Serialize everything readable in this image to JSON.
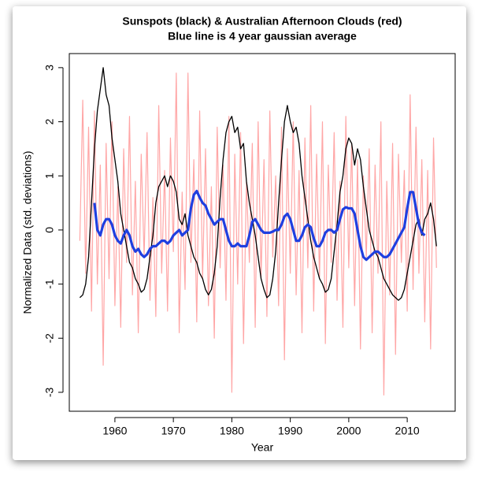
{
  "chart_data": {
    "type": "line",
    "title": "Sunspots (black) & Australian Afternoon Clouds (red)",
    "subtitle": "Blue line is 4 year gaussian average",
    "xlabel": "Year",
    "ylabel": "Normalized Data (std. deviations)",
    "x": [
      1954,
      1954.5,
      1955,
      1955.5,
      1956,
      1956.5,
      1957,
      1957.5,
      1958,
      1958.5,
      1959,
      1959.5,
      1960,
      1960.5,
      1961,
      1961.5,
      1962,
      1962.5,
      1963,
      1963.5,
      1964,
      1964.5,
      1965,
      1965.5,
      1966,
      1966.5,
      1967,
      1967.5,
      1968,
      1968.5,
      1969,
      1969.5,
      1970,
      1970.5,
      1971,
      1971.5,
      1972,
      1972.5,
      1973,
      1973.5,
      1974,
      1974.5,
      1975,
      1975.5,
      1976,
      1976.5,
      1977,
      1977.5,
      1978,
      1978.5,
      1979,
      1979.5,
      1980,
      1980.5,
      1981,
      1981.5,
      1982,
      1982.5,
      1983,
      1983.5,
      1984,
      1984.5,
      1985,
      1985.5,
      1986,
      1986.5,
      1987,
      1987.5,
      1988,
      1988.5,
      1989,
      1989.5,
      1990,
      1990.5,
      1991,
      1991.5,
      1992,
      1992.5,
      1993,
      1993.5,
      1994,
      1994.5,
      1995,
      1995.5,
      1996,
      1996.5,
      1997,
      1997.5,
      1998,
      1998.5,
      1999,
      1999.5,
      2000,
      2000.5,
      2001,
      2001.5,
      2002,
      2002.5,
      2003,
      2003.5,
      2004,
      2004.5,
      2005,
      2005.5,
      2006,
      2006.5,
      2007,
      2007.5,
      2008,
      2008.5,
      2009,
      2009.5,
      2010,
      2010.5,
      2011,
      2011.5,
      2012,
      2012.5,
      2013,
      2013.5,
      2014,
      2014.5,
      2015
    ],
    "series": [
      {
        "name": "Australian Afternoon Clouds",
        "color": "#ff0000",
        "opacity": 0.35,
        "width": 1.2,
        "values": [
          -0.2,
          2.4,
          -0.8,
          1.9,
          -1.5,
          2.2,
          -1.0,
          1.2,
          -2.5,
          1.6,
          -0.9,
          2.0,
          -1.4,
          0.8,
          -1.8,
          1.5,
          -0.6,
          2.1,
          -1.2,
          0.9,
          -1.9,
          1.4,
          -0.5,
          1.8,
          -1.3,
          0.6,
          -1.6,
          2.3,
          -0.8,
          1.1,
          -1.5,
          1.7,
          -0.4,
          2.9,
          -1.9,
          0.7,
          -1.1,
          2.9,
          -0.6,
          1.3,
          -1.7,
          2.2,
          -0.9,
          1.5,
          -1.4,
          0.8,
          -2.0,
          1.9,
          -0.7,
          1.2,
          -1.3,
          2.1,
          -3.0,
          1.4,
          -1.0,
          1.8,
          -2.1,
          0.9,
          -0.6,
          1.6,
          -1.8,
          2.0,
          -0.9,
          1.3,
          -1.6,
          2.2,
          -0.5,
          1.0,
          -1.4,
          1.9,
          -2.4,
          1.5,
          -0.8,
          2.0,
          -1.2,
          1.1,
          -1.9,
          1.7,
          -0.7,
          2.3,
          -1.5,
          1.4,
          -0.9,
          2.0,
          -2.1,
          1.2,
          -0.6,
          1.8,
          -1.3,
          0.9,
          -1.8,
          2.1,
          -0.7,
          1.6,
          -1.4,
          1.3,
          -2.2,
          1.0,
          -0.5,
          1.5,
          -1.9,
          1.2,
          -0.8,
          2.0,
          -3.05,
          0.9,
          -1.2,
          1.6,
          -2.3,
          1.4,
          -0.6,
          1.1,
          -1.5,
          2.5,
          -1.1,
          1.9,
          -0.8,
          1.3,
          -1.7,
          1.1,
          -2.2,
          1.7,
          -0.7
        ]
      },
      {
        "name": "Sunspots",
        "color": "#000000",
        "opacity": 1,
        "width": 1.3,
        "values": [
          -1.25,
          -1.2,
          -1.0,
          -0.5,
          0.5,
          1.5,
          2.2,
          2.6,
          3.0,
          2.5,
          2.3,
          1.7,
          1.3,
          0.9,
          0.3,
          0.0,
          -0.3,
          -0.6,
          -0.7,
          -0.9,
          -1.0,
          -1.15,
          -1.1,
          -0.9,
          -0.5,
          -0.1,
          0.5,
          0.8,
          0.9,
          1.0,
          0.8,
          1.0,
          0.9,
          0.7,
          0.2,
          0.1,
          0.3,
          -0.1,
          -0.3,
          -0.5,
          -0.6,
          -0.8,
          -0.9,
          -1.1,
          -1.2,
          -1.1,
          -0.8,
          -0.3,
          0.6,
          1.3,
          1.8,
          2.0,
          2.1,
          1.8,
          1.9,
          1.5,
          1.6,
          0.9,
          0.5,
          0.2,
          -0.1,
          -0.5,
          -0.9,
          -1.1,
          -1.25,
          -1.2,
          -0.9,
          -0.4,
          0.5,
          1.3,
          2.0,
          2.3,
          2.0,
          1.8,
          1.9,
          1.6,
          1.0,
          0.6,
          0.2,
          -0.2,
          -0.5,
          -0.7,
          -0.9,
          -1.0,
          -1.15,
          -1.1,
          -0.9,
          -0.4,
          0.1,
          0.7,
          1.0,
          1.5,
          1.7,
          1.6,
          1.2,
          1.5,
          1.3,
          0.8,
          0.4,
          0.0,
          -0.2,
          -0.4,
          -0.5,
          -0.7,
          -0.9,
          -1.0,
          -1.1,
          -1.2,
          -1.25,
          -1.3,
          -1.25,
          -1.1,
          -0.8,
          -0.5,
          -0.2,
          0.1,
          0.2,
          -0.1,
          0.2,
          0.3,
          0.5,
          0.2,
          -0.3
        ]
      },
      {
        "name": "4 year gaussian average",
        "color": "#1f3fe0",
        "opacity": 1,
        "width": 3.2,
        "values": [
          null,
          null,
          null,
          null,
          null,
          0.5,
          0.0,
          -0.1,
          0.1,
          0.2,
          0.2,
          0.1,
          -0.1,
          -0.2,
          -0.25,
          -0.1,
          0.0,
          -0.1,
          -0.3,
          -0.4,
          -0.35,
          -0.45,
          -0.5,
          -0.45,
          -0.35,
          -0.3,
          -0.3,
          -0.25,
          -0.2,
          -0.2,
          -0.25,
          -0.2,
          -0.1,
          -0.05,
          0.0,
          -0.1,
          -0.05,
          0.0,
          0.4,
          0.65,
          0.72,
          0.6,
          0.5,
          0.45,
          0.3,
          0.2,
          0.1,
          0.15,
          0.2,
          0.2,
          0.0,
          -0.2,
          -0.3,
          -0.3,
          -0.25,
          -0.3,
          -0.3,
          -0.3,
          -0.1,
          0.15,
          0.2,
          0.1,
          0.0,
          -0.05,
          -0.05,
          -0.05,
          -0.03,
          0.0,
          0.0,
          0.1,
          0.25,
          0.3,
          0.2,
          0.0,
          -0.2,
          -0.2,
          -0.1,
          0.05,
          0.1,
          0.05,
          -0.15,
          -0.3,
          -0.3,
          -0.2,
          -0.05,
          0.0,
          0.0,
          -0.05,
          0.0,
          0.2,
          0.38,
          0.42,
          0.4,
          0.4,
          0.3,
          0.0,
          -0.3,
          -0.5,
          -0.55,
          -0.5,
          -0.45,
          -0.4,
          -0.4,
          -0.45,
          -0.5,
          -0.5,
          -0.45,
          -0.35,
          -0.25,
          -0.15,
          -0.05,
          0.05,
          0.4,
          0.7,
          0.7,
          0.4,
          0.1,
          -0.05,
          -0.1,
          null,
          null,
          null,
          null
        ]
      }
    ],
    "xlim": [
      1952.2,
      2018.2
    ],
    "xticks": [
      1960,
      1970,
      1980,
      1990,
      2000,
      2010
    ],
    "ylim": [
      -3.35,
      3.26
    ],
    "yticks": [
      -3,
      -2,
      -1,
      0,
      1,
      2,
      3
    ]
  }
}
